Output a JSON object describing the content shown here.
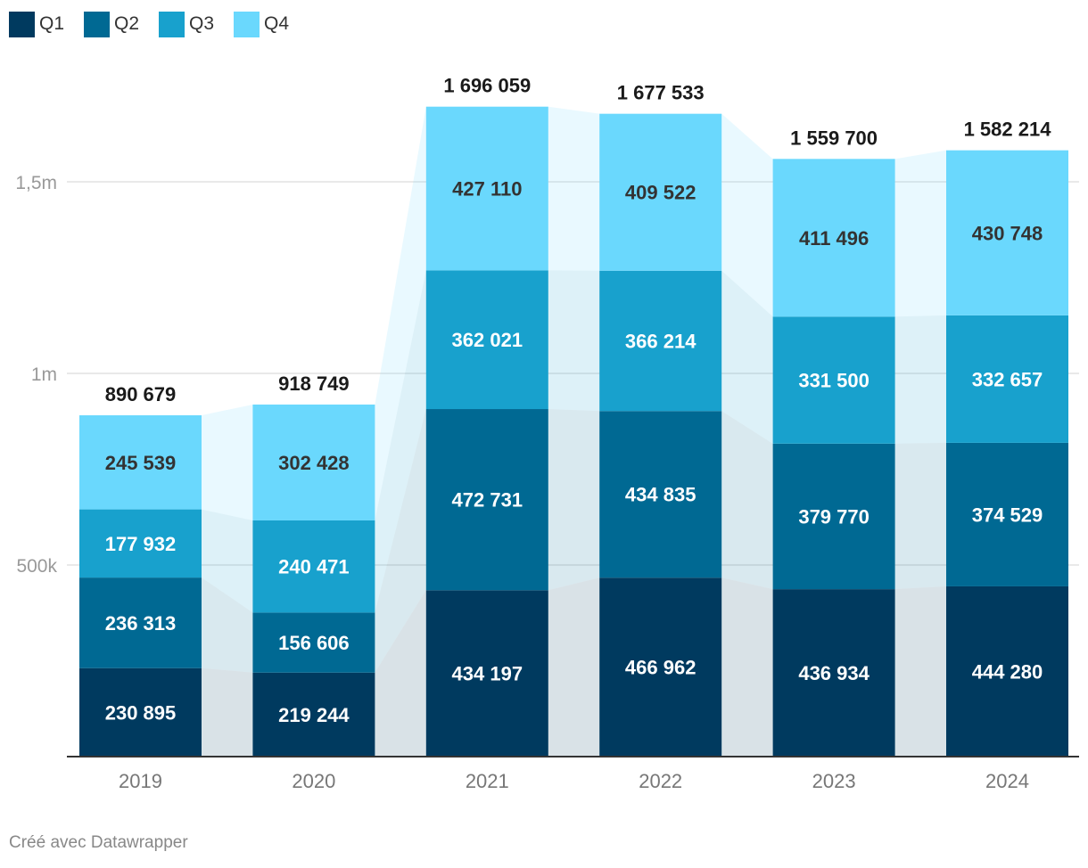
{
  "chart_data": {
    "type": "bar",
    "stacked": true,
    "title": "",
    "xlabel": "",
    "ylabel": "",
    "categories": [
      "2019",
      "2020",
      "2021",
      "2022",
      "2023",
      "2024"
    ],
    "series": [
      {
        "name": "Q1",
        "color": "#003a5f",
        "values": [
          230895,
          219244,
          434197,
          466962,
          436934,
          444280
        ],
        "labels": [
          "230 895",
          "219 244",
          "434 197",
          "466 962",
          "436 934",
          "444 280"
        ]
      },
      {
        "name": "Q2",
        "color": "#006993",
        "values": [
          236313,
          156606,
          472731,
          434835,
          379770,
          374529
        ],
        "labels": [
          "236 313",
          "156 606",
          "472 731",
          "434 835",
          "379 770",
          "374 529"
        ]
      },
      {
        "name": "Q3",
        "color": "#18a1cd",
        "values": [
          177932,
          240471,
          362021,
          366214,
          331500,
          332657
        ],
        "labels": [
          "177 932",
          "240 471",
          "362 021",
          "366 214",
          "331 500",
          "332 657"
        ]
      },
      {
        "name": "Q4",
        "color": "#6ad8fd",
        "values": [
          245539,
          302428,
          427110,
          409522,
          411496,
          430748
        ],
        "labels": [
          "245 539",
          "302 428",
          "427 110",
          "409 522",
          "411 496",
          "430 748"
        ]
      }
    ],
    "totals": [
      890679,
      918749,
      1696059,
      1677533,
      1559700,
      1582214
    ],
    "total_labels": [
      "890 679",
      "918 749",
      "1 696 059",
      "1 677 533",
      "1 559 700",
      "1 582 214"
    ],
    "y_ticks": [
      500000,
      1000000,
      1500000
    ],
    "y_tick_labels": [
      "500k",
      "1m",
      "1,5m"
    ],
    "ylim": [
      0,
      1800000
    ],
    "grid": true,
    "legend": "top-left"
  },
  "legend": {
    "items": [
      {
        "label": "Q1",
        "color": "#003a5f"
      },
      {
        "label": "Q2",
        "color": "#006993"
      },
      {
        "label": "Q3",
        "color": "#18a1cd"
      },
      {
        "label": "Q4",
        "color": "#6ad8fd"
      }
    ]
  },
  "footer": {
    "credit": "Créé avec Datawrapper"
  }
}
